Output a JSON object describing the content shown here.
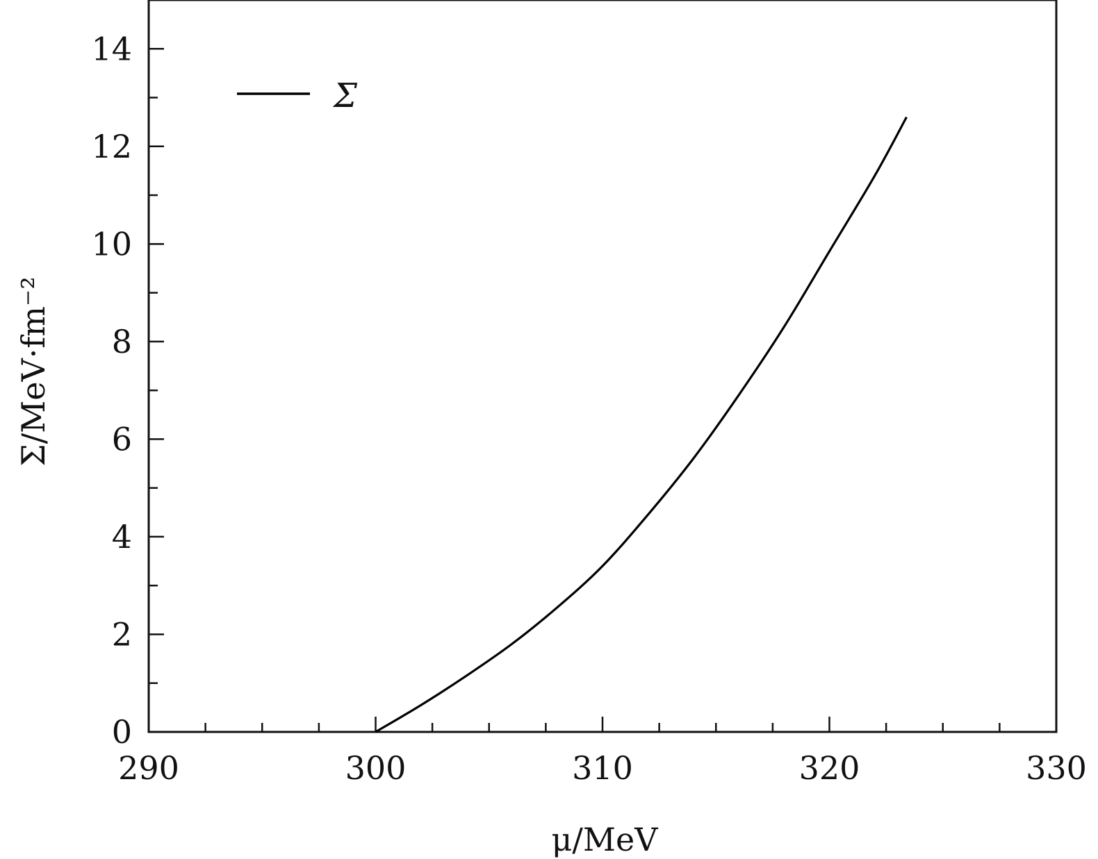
{
  "chart_data": {
    "type": "line",
    "title": "",
    "xlabel": "μ/MeV",
    "ylabel": "Σ/MeV·fm⁻²",
    "xlim": [
      290,
      330
    ],
    "ylim": [
      0,
      15
    ],
    "x_ticks": [
      290,
      300,
      310,
      320,
      330
    ],
    "y_ticks": [
      0,
      2,
      4,
      6,
      8,
      10,
      12,
      14
    ],
    "x_tick_labels": [
      "290",
      "300",
      "310",
      "320",
      "330"
    ],
    "y_tick_labels": [
      "0",
      "2",
      "4",
      "6",
      "8",
      "10",
      "12",
      "14"
    ],
    "grid": false,
    "legend_position": "top-left",
    "series": [
      {
        "name": "Σ",
        "color": "#000000",
        "x": [
          300,
          302,
          304,
          306,
          308,
          310,
          312,
          314,
          316,
          318,
          320,
          322,
          323.4
        ],
        "y": [
          0,
          0.55,
          1.15,
          1.8,
          2.55,
          3.4,
          4.45,
          5.6,
          6.9,
          8.3,
          9.85,
          11.4,
          12.6
        ]
      }
    ]
  }
}
